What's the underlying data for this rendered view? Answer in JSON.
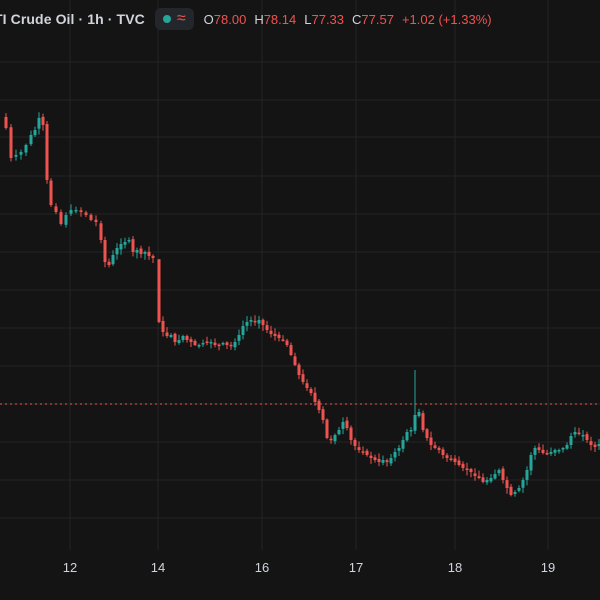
{
  "legend": {
    "title": "TI Crude Oil · 1h · TVC",
    "status_icon": "green-dot-icon",
    "indicator_icon": "wave-icon",
    "indicator_glyph": "≈",
    "open_label": "O",
    "open": "78.00",
    "high_label": "H",
    "high": "78.14",
    "low_label": "L",
    "low": "77.33",
    "close_label": "C",
    "close": "77.57",
    "change": "+1.02 (+1.33%)"
  },
  "colors": {
    "background": "#141414",
    "grid": "#242424",
    "up": "#26a69a",
    "down": "#ef5350",
    "axis_text": "#d1d4dc"
  },
  "chart_data": {
    "type": "candlestick",
    "x_ticks": [
      "12",
      "14",
      "16",
      "17",
      "18",
      "19"
    ],
    "price_line_color": "#ef5350",
    "close_path": [
      [
        0,
        117
      ],
      [
        5,
        128
      ],
      [
        10,
        158
      ],
      [
        15,
        155
      ],
      [
        20,
        152
      ],
      [
        25,
        145
      ],
      [
        30,
        135
      ],
      [
        34,
        130
      ],
      [
        38,
        118
      ],
      [
        42,
        125
      ],
      [
        46,
        180
      ],
      [
        50,
        205
      ],
      [
        55,
        212
      ],
      [
        60,
        224
      ],
      [
        65,
        215
      ],
      [
        70,
        210
      ],
      [
        75,
        210
      ],
      [
        80,
        212
      ],
      [
        85,
        215
      ],
      [
        90,
        220
      ],
      [
        95,
        222
      ],
      [
        100,
        240
      ],
      [
        104,
        262
      ],
      [
        108,
        265
      ],
      [
        112,
        255
      ],
      [
        116,
        248
      ],
      [
        120,
        244
      ],
      [
        124,
        242
      ],
      [
        128,
        240
      ],
      [
        132,
        252
      ],
      [
        136,
        250
      ],
      [
        140,
        254
      ],
      [
        144,
        252
      ],
      [
        148,
        256
      ],
      [
        152,
        258
      ],
      [
        158,
        322
      ],
      [
        162,
        332
      ],
      [
        166,
        336
      ],
      [
        170,
        335
      ],
      [
        174,
        342
      ],
      [
        178,
        340
      ],
      [
        182,
        336
      ],
      [
        186,
        340
      ],
      [
        190,
        342
      ],
      [
        194,
        345
      ],
      [
        198,
        345
      ],
      [
        202,
        343
      ],
      [
        206,
        342
      ],
      [
        210,
        342
      ],
      [
        214,
        345
      ],
      [
        218,
        345
      ],
      [
        222,
        343
      ],
      [
        226,
        345
      ],
      [
        230,
        346
      ],
      [
        234,
        342
      ],
      [
        238,
        335
      ],
      [
        242,
        326
      ],
      [
        246,
        322
      ],
      [
        250,
        320
      ],
      [
        254,
        322
      ],
      [
        258,
        320
      ],
      [
        262,
        325
      ],
      [
        266,
        330
      ],
      [
        270,
        334
      ],
      [
        274,
        336
      ],
      [
        278,
        338
      ],
      [
        282,
        340
      ],
      [
        286,
        345
      ],
      [
        290,
        355
      ],
      [
        294,
        365
      ],
      [
        298,
        375
      ],
      [
        302,
        382
      ],
      [
        306,
        388
      ],
      [
        310,
        393
      ],
      [
        314,
        402
      ],
      [
        318,
        410
      ],
      [
        322,
        420
      ],
      [
        326,
        438
      ],
      [
        330,
        440
      ],
      [
        334,
        435
      ],
      [
        338,
        430
      ],
      [
        342,
        422
      ],
      [
        346,
        428
      ],
      [
        350,
        440
      ],
      [
        354,
        446
      ],
      [
        358,
        450
      ],
      [
        362,
        452
      ],
      [
        366,
        455
      ],
      [
        370,
        458
      ],
      [
        374,
        460
      ],
      [
        378,
        462
      ],
      [
        382,
        460
      ],
      [
        386,
        462
      ],
      [
        390,
        458
      ],
      [
        394,
        452
      ],
      [
        398,
        448
      ],
      [
        402,
        440
      ],
      [
        406,
        432
      ],
      [
        410,
        430
      ],
      [
        414,
        415
      ],
      [
        418,
        412
      ],
      [
        422,
        430
      ],
      [
        426,
        438
      ],
      [
        430,
        445
      ],
      [
        434,
        448
      ],
      [
        438,
        450
      ],
      [
        442,
        455
      ],
      [
        446,
        458
      ],
      [
        450,
        460
      ],
      [
        454,
        462
      ],
      [
        458,
        465
      ],
      [
        462,
        468
      ],
      [
        466,
        470
      ],
      [
        470,
        472
      ],
      [
        474,
        476
      ],
      [
        478,
        478
      ],
      [
        482,
        482
      ],
      [
        486,
        480
      ],
      [
        490,
        478
      ],
      [
        494,
        474
      ],
      [
        498,
        470
      ],
      [
        502,
        480
      ],
      [
        506,
        488
      ],
      [
        510,
        495
      ],
      [
        514,
        492
      ],
      [
        518,
        488
      ],
      [
        522,
        480
      ],
      [
        526,
        470
      ],
      [
        530,
        455
      ],
      [
        534,
        448
      ],
      [
        538,
        450
      ],
      [
        542,
        453
      ],
      [
        546,
        453
      ],
      [
        550,
        452
      ],
      [
        554,
        450
      ],
      [
        558,
        450
      ],
      [
        562,
        448
      ],
      [
        566,
        445
      ],
      [
        570,
        436
      ],
      [
        574,
        432
      ],
      [
        578,
        434
      ],
      [
        582,
        435
      ],
      [
        586,
        440
      ],
      [
        590,
        445
      ],
      [
        594,
        447
      ],
      [
        598,
        444
      ]
    ]
  }
}
